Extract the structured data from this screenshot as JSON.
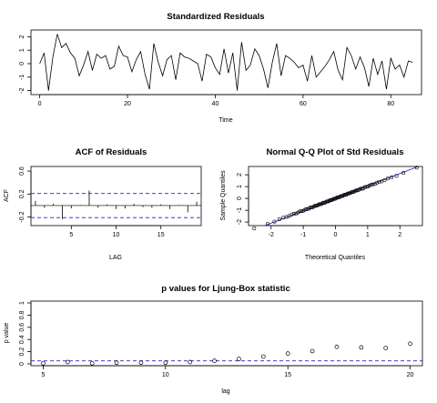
{
  "chart_data": [
    {
      "type": "line",
      "title": "Standardized Residuals",
      "xlabel": "Time",
      "ylabel": "",
      "xlim": [
        -2,
        87
      ],
      "ylim": [
        -2.3,
        2.5
      ],
      "x_ticks": [
        0,
        20,
        40,
        60,
        80
      ],
      "y_ticks": [
        -2,
        -1,
        0,
        1,
        2
      ],
      "values": [
        0.0,
        0.8,
        -2.0,
        0.5,
        2.2,
        1.2,
        1.5,
        0.8,
        0.4,
        -0.9,
        -0.1,
        0.9,
        -0.5,
        0.7,
        0.4,
        0.6,
        -0.4,
        -0.2,
        1.3,
        0.6,
        0.5,
        -0.6,
        0.3,
        0.9,
        -0.8,
        -1.9,
        1.5,
        0.1,
        -0.9,
        0.3,
        0.6,
        -1.2,
        0.8,
        0.5,
        0.4,
        0.2,
        0.0,
        -1.3,
        0.7,
        0.5,
        -0.3,
        -0.8,
        1.1,
        -0.7,
        0.8,
        -2.0,
        1.6,
        -0.5,
        -0.1,
        1.1,
        0.6,
        -0.4,
        -1.8,
        0.1,
        1.5,
        -0.9,
        0.6,
        0.4,
        0.1,
        -0.3,
        -0.1,
        -1.3,
        0.6,
        -1.0,
        -0.6,
        -0.2,
        0.3,
        0.9,
        -0.5,
        -1.2,
        1.2,
        0.6,
        -0.4,
        0.5,
        -0.3,
        -1.7,
        0.4,
        -0.8,
        0.2,
        -1.9,
        0.4,
        -0.4,
        -0.1,
        -1.0,
        0.2,
        0.1
      ],
      "grid": false
    },
    {
      "type": "bar",
      "title": "ACF of Residuals",
      "xlabel": "LAG",
      "ylabel": "ACF",
      "xlim": [
        0.5,
        19.5
      ],
      "ylim": [
        -0.35,
        0.68
      ],
      "x_ticks": [
        5,
        10,
        15
      ],
      "y_ticks": [
        -0.2,
        0.2,
        0.6
      ],
      "lags": [
        1,
        2,
        3,
        4,
        5,
        6,
        7,
        8,
        9,
        10,
        11,
        12,
        13,
        14,
        15,
        16,
        17,
        18,
        19
      ],
      "values": [
        0.08,
        -0.04,
        0.03,
        -0.24,
        -0.05,
        0.01,
        0.26,
        -0.04,
        0.02,
        -0.06,
        -0.05,
        0.03,
        -0.03,
        -0.04,
        0.02,
        -0.06,
        0.01,
        -0.12,
        0.07
      ],
      "confidence_band": [
        -0.21,
        0.21
      ],
      "grid": false
    },
    {
      "type": "scatter",
      "title": "Normal Q-Q Plot of Std Residuals",
      "xlabel": "Theoretical Quantiles",
      "ylabel": "Sample Quantiles",
      "xlim": [
        -2.7,
        2.7
      ],
      "ylim": [
        -2.3,
        2.7
      ],
      "x_ticks": [
        -2,
        -1,
        0,
        1,
        2
      ],
      "y_ticks": [
        -2,
        -1,
        0,
        1,
        2
      ],
      "reference_line": {
        "intercept": 0.0,
        "slope": 1.05
      },
      "sample_count": 86,
      "grid": false
    },
    {
      "type": "scatter",
      "title": "p values for Ljung-Box statistic",
      "xlabel": "lag",
      "ylabel": "p value",
      "xlim": [
        4.5,
        20.5
      ],
      "ylim": [
        -0.03,
        1.03
      ],
      "x_ticks": [
        5,
        10,
        15,
        20
      ],
      "y_ticks": [
        0.0,
        0.2,
        0.4,
        0.6,
        0.8,
        1.0
      ],
      "x": [
        5,
        6,
        7,
        8,
        9,
        10,
        11,
        12,
        13,
        14,
        15,
        16,
        17,
        18,
        19,
        20
      ],
      "values": [
        0.01,
        0.03,
        0.01,
        0.02,
        0.02,
        0.02,
        0.03,
        0.05,
        0.08,
        0.12,
        0.17,
        0.21,
        0.28,
        0.27,
        0.26,
        0.33
      ],
      "reference_line_y": 0.05,
      "grid": false
    }
  ]
}
